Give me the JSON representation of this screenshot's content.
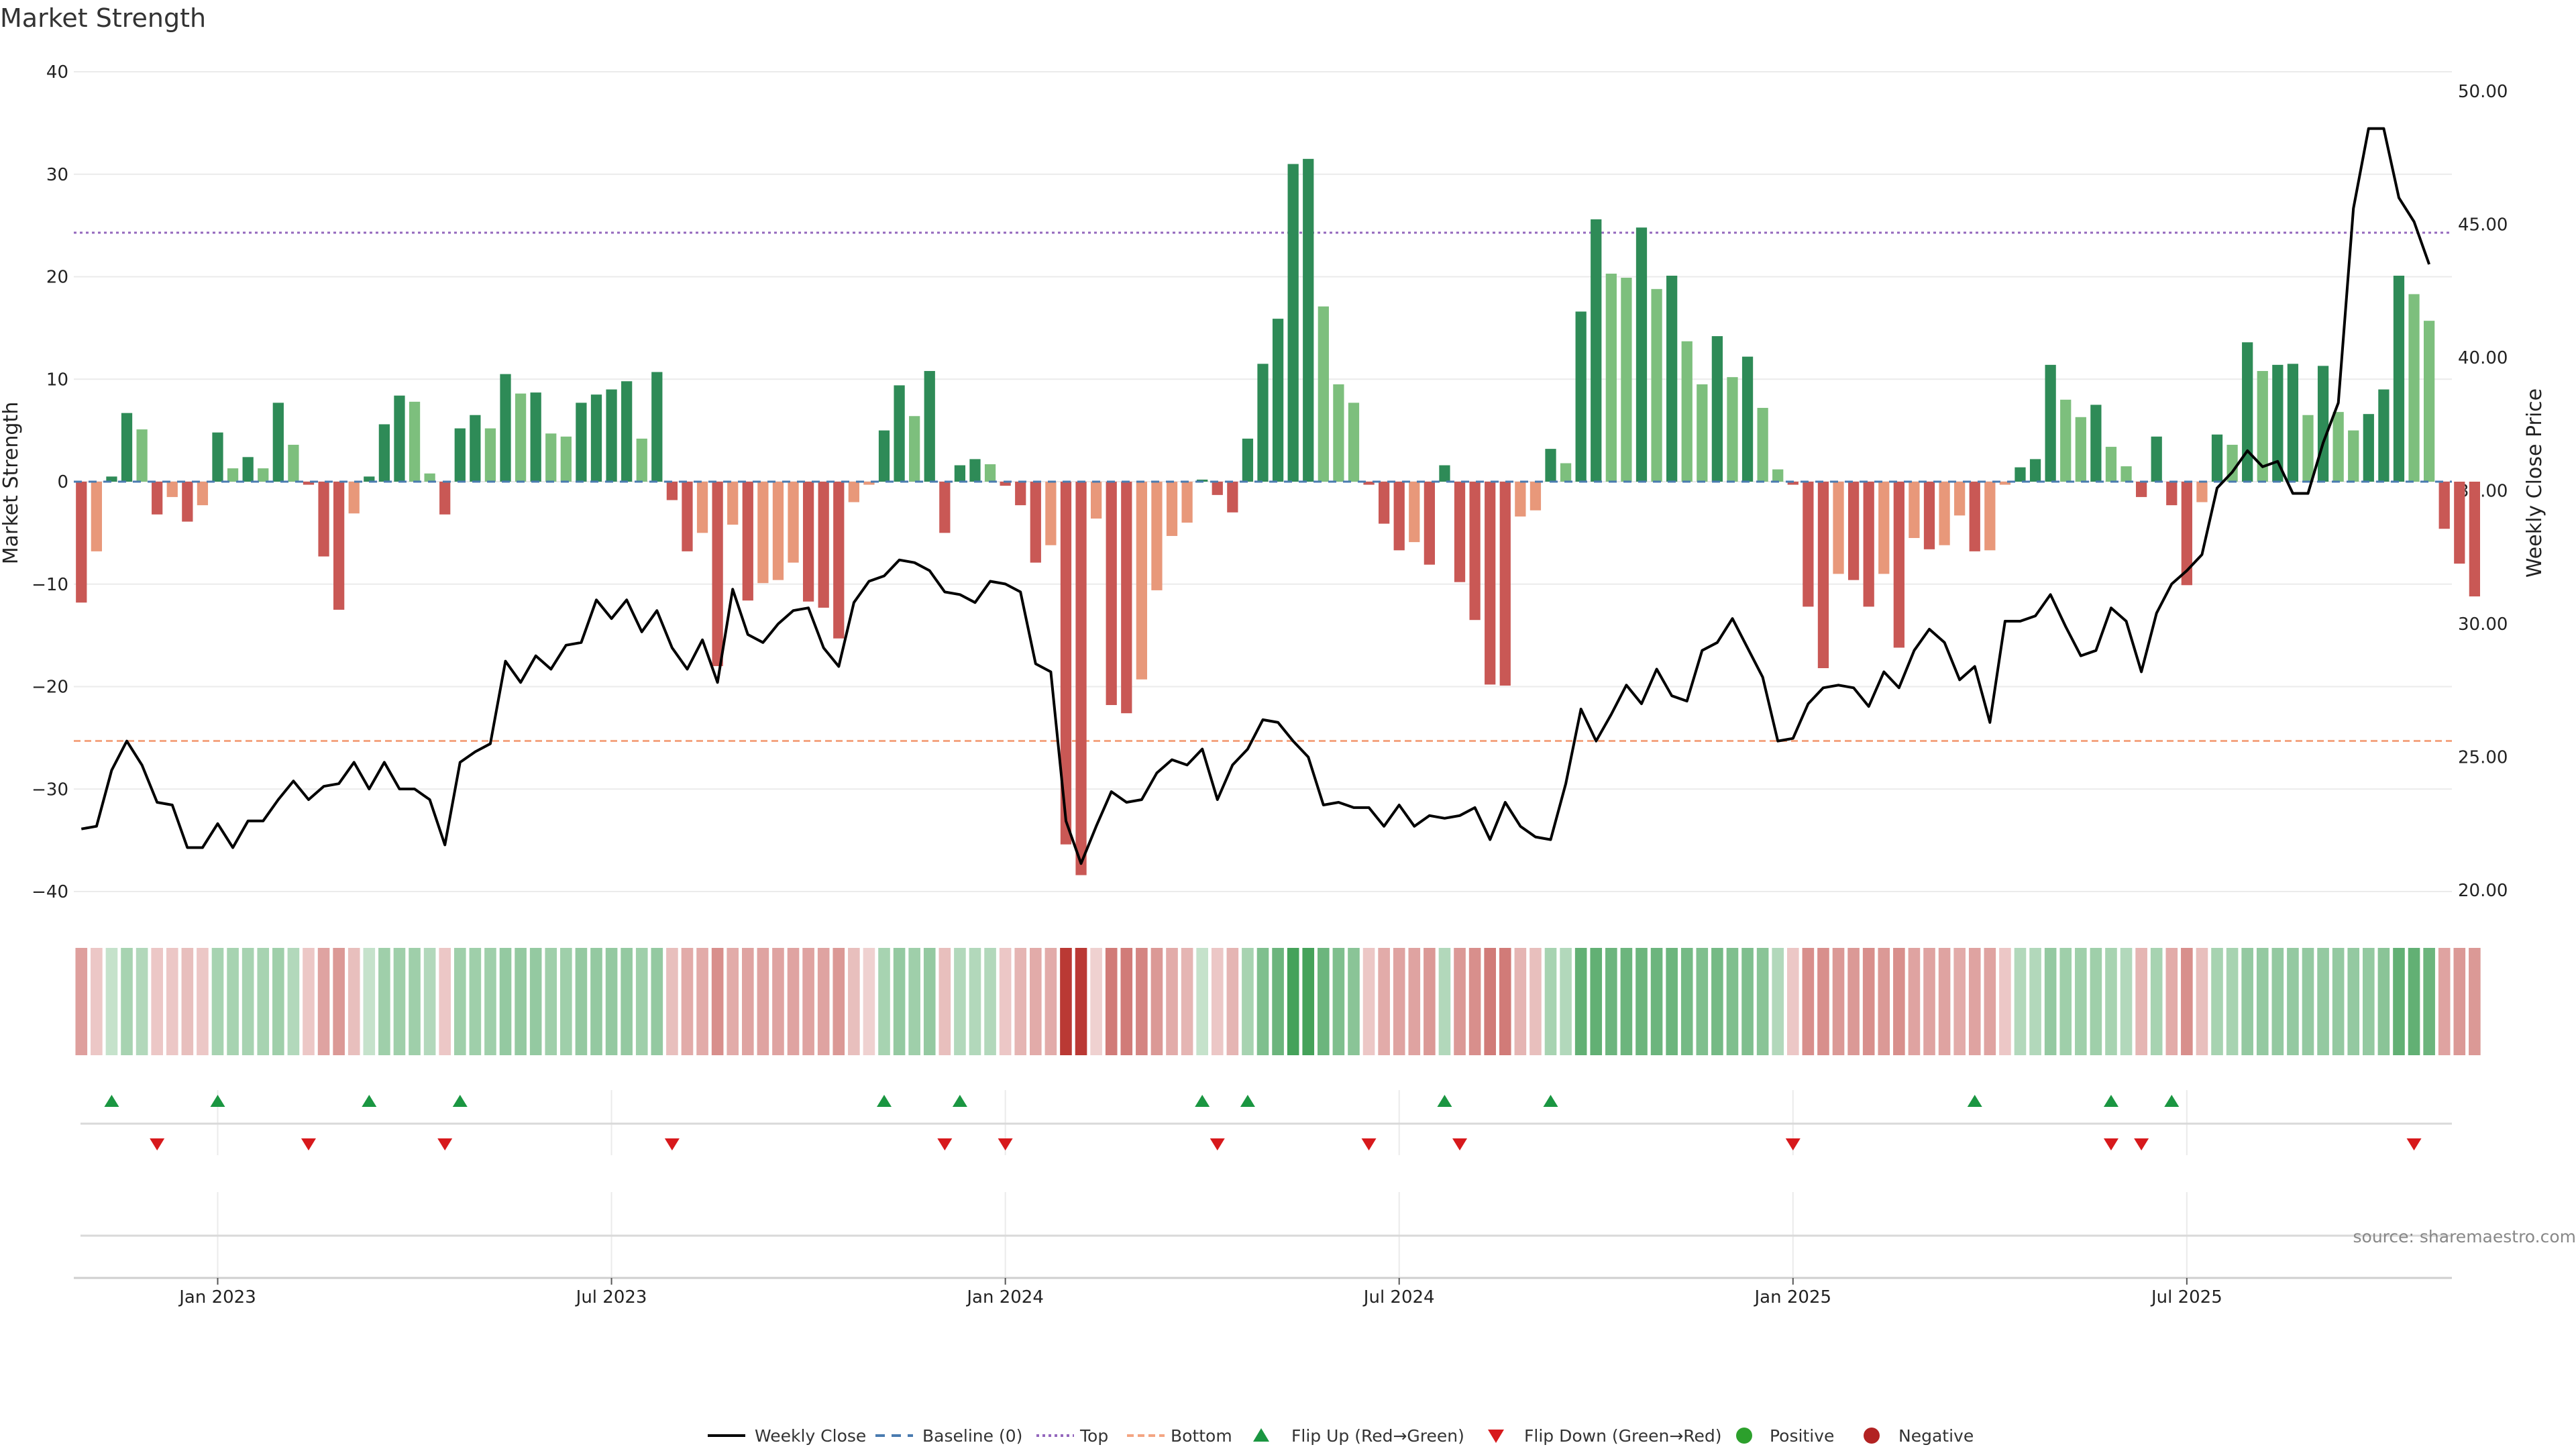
{
  "chart_data": {
    "type": "bar+line",
    "title": "Market Strength",
    "ylabel_left": "Market Strength",
    "ylabel_right": "Weekly Close Price",
    "yticks_left": [
      40,
      30,
      20,
      10,
      0,
      -10,
      -20,
      -30,
      -40
    ],
    "ytick_labels_left": [
      "40",
      "30",
      "20",
      "10",
      "0",
      "−10",
      "−20",
      "−30",
      "−40"
    ],
    "ylim_left": [
      -40,
      40
    ],
    "yticks_right": [
      50,
      45,
      40,
      35,
      30,
      25,
      20
    ],
    "ytick_labels_right": [
      "50.00",
      "45.00",
      "40.00",
      "35.00",
      "30.00",
      "25.00",
      "20.00"
    ],
    "ylim_right": [
      19.7,
      50.7
    ],
    "top_threshold": 24.3,
    "bottom_threshold": -25.3,
    "x_tick_labels": [
      "Jan 2023",
      "Jul 2023",
      "Jan 2024",
      "Jul 2024",
      "Jan 2025",
      "Jul 2025"
    ],
    "x_tick_weeks": [
      9,
      35,
      61,
      87,
      113,
      139
    ],
    "start_week": 0,
    "num_weeks": 157,
    "strength": [
      -11.8,
      -6.8,
      0.5,
      6.7,
      5.1,
      -3.2,
      -1.5,
      -3.9,
      -2.3,
      4.8,
      1.3,
      2.4,
      1.3,
      7.7,
      3.6,
      -0.3,
      -7.3,
      -12.5,
      -3.1,
      0.5,
      5.6,
      8.4,
      7.8,
      0.8,
      -3.2,
      5.2,
      6.5,
      5.2,
      10.5,
      8.6,
      8.7,
      4.7,
      4.4,
      7.7,
      8.5,
      9.0,
      9.8,
      4.2,
      10.7,
      -1.8,
      -6.8,
      -5.0,
      -18.0,
      -4.2,
      -11.6,
      -9.9,
      -9.6,
      -7.9,
      -11.7,
      -12.3,
      -15.3,
      -2.0,
      -0.3,
      5.0,
      9.4,
      6.4,
      10.8,
      -5.0,
      1.6,
      2.2,
      1.7,
      -0.4,
      -2.3,
      -7.9,
      -6.2,
      -35.4,
      -38.4,
      -3.6,
      -21.8,
      -22.6,
      -19.3,
      -10.6,
      -5.3,
      -4.0,
      0.2,
      -1.3,
      -3.0,
      4.2,
      11.5,
      15.9,
      31.0,
      31.5,
      17.1,
      9.5,
      7.7,
      -0.3,
      -4.1,
      -6.7,
      -5.9,
      -8.1,
      1.6,
      -9.8,
      -13.5,
      -19.8,
      -19.9,
      -3.4,
      -2.8,
      3.2,
      1.8,
      16.6,
      25.6,
      20.3,
      19.9,
      24.8,
      18.8,
      20.1,
      13.7,
      9.5,
      14.2,
      10.2,
      12.2,
      7.2,
      1.2,
      -0.3,
      -12.2,
      -18.2,
      -9.0,
      -9.6,
      -12.2,
      -9.0,
      -16.2,
      -5.5,
      -6.6,
      -6.2,
      -3.3,
      -6.8,
      -6.7,
      -0.3,
      1.4,
      2.2,
      11.4,
      8.0,
      6.3,
      7.5,
      3.4,
      1.5,
      -1.5,
      4.4,
      -2.3,
      -10.1,
      -2.0,
      4.6,
      3.6,
      13.6,
      10.8,
      11.4,
      11.5,
      6.5,
      11.3,
      6.8,
      5.0,
      6.6,
      9.0,
      20.1,
      18.3,
      15.7,
      -4.6,
      -8.0,
      -11.2
    ],
    "weekly_close": [
      22.3,
      22.4,
      24.5,
      25.6,
      24.7,
      23.3,
      23.2,
      21.6,
      21.6,
      22.5,
      21.6,
      22.6,
      22.6,
      23.4,
      24.1,
      23.4,
      23.9,
      24.0,
      24.8,
      23.8,
      24.8,
      23.8,
      23.8,
      23.4,
      21.7,
      24.8,
      25.2,
      25.5,
      28.6,
      27.8,
      28.8,
      28.3,
      29.2,
      29.3,
      30.9,
      30.2,
      30.9,
      29.7,
      30.5,
      29.1,
      28.3,
      29.4,
      27.8,
      31.3,
      29.6,
      29.3,
      30.0,
      30.5,
      30.6,
      29.1,
      28.4,
      30.8,
      31.6,
      31.8,
      32.4,
      32.3,
      32.0,
      31.2,
      31.1,
      30.8,
      31.6,
      31.5,
      31.2,
      28.5,
      28.2,
      22.6,
      21.0,
      22.4,
      23.7,
      23.3,
      23.4,
      24.4,
      24.9,
      24.7,
      25.3,
      23.4,
      24.7,
      25.3,
      26.4,
      26.3,
      25.6,
      25.0,
      23.2,
      23.3,
      23.1,
      23.1,
      22.4,
      23.2,
      22.4,
      22.8,
      22.7,
      22.8,
      23.1,
      21.9,
      23.3,
      22.4,
      22.0,
      21.9,
      24.0,
      26.8,
      25.6,
      26.6,
      27.7,
      27.0,
      28.3,
      27.3,
      27.1,
      29.0,
      29.3,
      30.2,
      29.1,
      28.0,
      25.6,
      25.7,
      27.0,
      27.6,
      27.7,
      27.6,
      26.9,
      28.2,
      27.6,
      29.0,
      29.8,
      29.3,
      27.9,
      28.4,
      26.3,
      30.1,
      30.1,
      30.3,
      31.1,
      29.9,
      28.8,
      29.0,
      30.6,
      30.1,
      28.2,
      30.4,
      31.5,
      32.0,
      32.6,
      35.1,
      35.7,
      36.5,
      35.9,
      36.1,
      34.9,
      34.9,
      36.8,
      38.3,
      45.6,
      48.6,
      48.6,
      46.0,
      45.1,
      43.5
    ],
    "shade_strength": [
      -0.32,
      -0.1,
      0.1,
      0.25,
      0.2,
      -0.1,
      -0.1,
      -0.15,
      -0.1,
      0.25,
      0.25,
      0.25,
      0.25,
      0.3,
      0.2,
      -0.1,
      -0.3,
      -0.35,
      -0.15,
      0.1,
      0.3,
      0.3,
      0.3,
      0.2,
      -0.1,
      0.3,
      0.3,
      0.3,
      0.35,
      0.35,
      0.35,
      0.3,
      0.3,
      0.35,
      0.35,
      0.35,
      0.35,
      0.3,
      0.35,
      -0.15,
      -0.25,
      -0.25,
      -0.4,
      -0.25,
      -0.3,
      -0.3,
      -0.3,
      -0.3,
      -0.3,
      -0.3,
      -0.35,
      -0.15,
      -0.05,
      0.25,
      0.35,
      0.3,
      0.35,
      -0.15,
      0.2,
      0.2,
      0.2,
      -0.1,
      -0.2,
      -0.25,
      -0.25,
      -0.85,
      -0.85,
      -0.05,
      -0.5,
      -0.5,
      -0.45,
      -0.35,
      -0.25,
      -0.2,
      0.1,
      -0.1,
      -0.2,
      0.25,
      0.45,
      0.55,
      0.75,
      0.75,
      0.55,
      0.45,
      0.4,
      -0.1,
      -0.25,
      -0.3,
      -0.3,
      -0.35,
      0.2,
      -0.35,
      -0.4,
      -0.5,
      -0.5,
      -0.2,
      -0.15,
      0.25,
      0.2,
      0.6,
      0.6,
      0.55,
      0.55,
      0.55,
      0.55,
      0.55,
      0.5,
      0.45,
      0.5,
      0.45,
      0.45,
      0.4,
      0.2,
      -0.1,
      -0.4,
      -0.4,
      -0.35,
      -0.35,
      -0.4,
      -0.35,
      -0.4,
      -0.3,
      -0.3,
      -0.3,
      -0.25,
      -0.3,
      -0.3,
      -0.1,
      0.2,
      0.2,
      0.35,
      0.3,
      0.3,
      0.3,
      0.25,
      0.2,
      -0.2,
      0.25,
      -0.25,
      -0.4,
      -0.15,
      0.25,
      0.25,
      0.35,
      0.35,
      0.35,
      0.35,
      0.35,
      0.35,
      0.35,
      0.35,
      0.35,
      0.4,
      0.6,
      0.6,
      0.55,
      -0.3,
      -0.35,
      -0.35
    ],
    "flip_up_weeks": [
      2,
      9,
      19,
      25,
      53,
      58,
      74,
      77,
      90,
      97,
      125,
      134,
      138
    ],
    "flip_down_weeks": [
      5,
      15,
      24,
      39,
      57,
      61,
      75,
      85,
      91,
      113,
      134,
      136,
      154
    ],
    "legend": [
      "Weekly Close",
      "Baseline (0)",
      "Top",
      "Bottom",
      "Flip Up (Red→Green)",
      "Flip Down (Green→Red)",
      "Positive",
      "Negative"
    ],
    "colors": {
      "strong_green": "#2e8b57",
      "light_green": "#7dbf7d",
      "strong_red": "#c95855",
      "light_red": "#e8987a",
      "top_line": "#9467bd",
      "bottom_line": "#f4a582",
      "baseline": "#4a7bb0",
      "close_line": "#000000",
      "flip_up": "#1a9641",
      "flip_down": "#d7191c",
      "positive_dot": "#2ca02c",
      "negative_dot": "#b22222"
    }
  },
  "source_label": "source: sharemaestro.com"
}
